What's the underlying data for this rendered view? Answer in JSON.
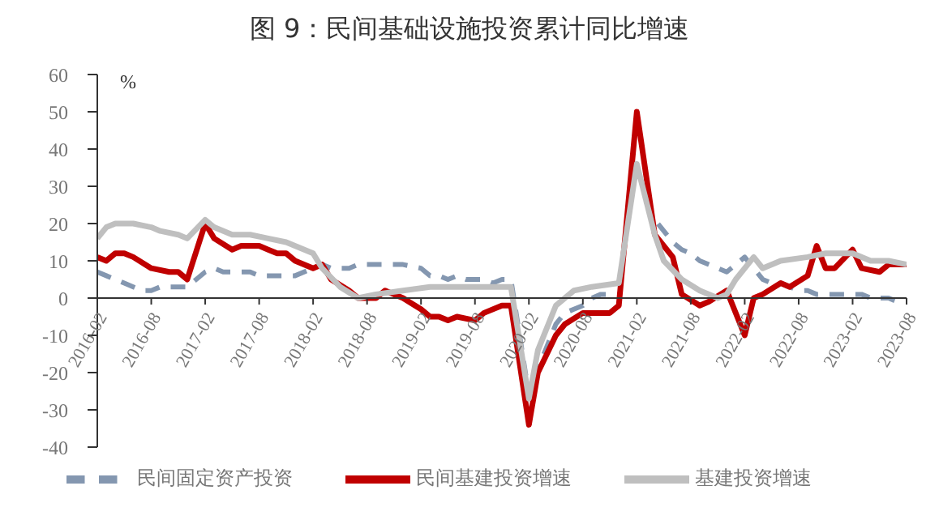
{
  "chart_data": {
    "type": "line",
    "title": "图 9：民间基础设施投资累计同比增速",
    "ylabel": "%",
    "xlim": [
      "2016-02",
      "2023-08"
    ],
    "xticks": [
      "2016-02",
      "2016-08",
      "2017-02",
      "2017-08",
      "2018-02",
      "2018-08",
      "2019-02",
      "2019-08",
      "2020-02",
      "2020-08",
      "2021-02",
      "2021-08",
      "2022-02",
      "2022-08",
      "2023-02",
      "2023-08"
    ],
    "ylim": [
      -40,
      60
    ],
    "yticks": [
      -40,
      -30,
      -20,
      -10,
      0,
      10,
      20,
      30,
      40,
      50,
      60
    ],
    "grid": false,
    "legend": "bottom",
    "series": [
      {
        "name": "民间固定资产投资",
        "color": "#8497b0",
        "line_style": "dashed",
        "x": [
          "2016-02",
          "2016-03",
          "2016-04",
          "2016-05",
          "2016-06",
          "2016-07",
          "2016-08",
          "2016-09",
          "2016-10",
          "2016-11",
          "2016-12",
          "2017-02",
          "2017-03",
          "2017-04",
          "2017-05",
          "2017-06",
          "2017-07",
          "2017-08",
          "2017-09",
          "2017-10",
          "2017-11",
          "2017-12",
          "2018-02",
          "2018-03",
          "2018-04",
          "2018-05",
          "2018-06",
          "2018-07",
          "2018-08",
          "2018-09",
          "2018-10",
          "2018-11",
          "2018-12",
          "2019-02",
          "2019-03",
          "2019-04",
          "2019-05",
          "2019-06",
          "2019-07",
          "2019-08",
          "2019-09",
          "2019-10",
          "2019-11",
          "2019-12",
          "2020-02",
          "2020-03",
          "2020-04",
          "2020-05",
          "2020-06",
          "2020-07",
          "2020-08",
          "2020-09",
          "2020-10",
          "2020-11",
          "2020-12",
          "2021-02",
          "2021-03",
          "2021-04",
          "2021-05",
          "2021-06",
          "2021-07",
          "2021-08",
          "2021-09",
          "2021-10",
          "2021-11",
          "2021-12",
          "2022-02",
          "2022-03",
          "2022-04",
          "2022-05",
          "2022-06",
          "2022-07",
          "2022-08",
          "2022-09",
          "2022-10",
          "2022-11",
          "2022-12",
          "2023-02",
          "2023-03",
          "2023-04",
          "2023-05",
          "2023-06",
          "2023-07",
          "2023-08"
        ],
        "values": [
          7,
          6,
          5,
          4,
          3,
          2,
          2,
          3,
          3,
          3,
          3,
          7,
          8,
          7,
          7,
          7,
          7,
          6,
          6,
          6,
          6,
          6,
          8,
          9,
          8,
          8,
          8,
          9,
          9,
          9,
          9,
          9,
          9,
          8,
          6,
          6,
          5,
          6,
          5,
          5,
          5,
          4,
          5,
          5,
          -26,
          -19,
          -13,
          -7,
          -4,
          -3,
          -2,
          0,
          1,
          1,
          1,
          null,
          26,
          21,
          18,
          15,
          13,
          12,
          10,
          9,
          8,
          7,
          11,
          8,
          5,
          4,
          4,
          3,
          2,
          2,
          1,
          1,
          1,
          1,
          1,
          0,
          0,
          0,
          -1,
          -1
        ]
      },
      {
        "name": "民间基建投资增速",
        "color": "#c00000",
        "line_style": "solid",
        "x": [
          "2016-02",
          "2016-03",
          "2016-04",
          "2016-05",
          "2016-06",
          "2016-08",
          "2016-10",
          "2016-11",
          "2016-12",
          "2017-02",
          "2017-03",
          "2017-05",
          "2017-06",
          "2017-08",
          "2017-09",
          "2017-10",
          "2017-11",
          "2017-12",
          "2018-02",
          "2018-03",
          "2018-04",
          "2018-06",
          "2018-07",
          "2018-09",
          "2018-10",
          "2018-12",
          "2019-02",
          "2019-03",
          "2019-04",
          "2019-05",
          "2019-06",
          "2019-08",
          "2019-09",
          "2019-11",
          "2019-12",
          "2020-02",
          "2020-03",
          "2020-05",
          "2020-06",
          "2020-08",
          "2020-09",
          "2020-11",
          "2020-12",
          "2021-02",
          "2021-04",
          "2021-06",
          "2021-07",
          "2021-09",
          "2021-10",
          "2021-12",
          "2022-02",
          "2022-03",
          "2022-04",
          "2022-06",
          "2022-07",
          "2022-09",
          "2022-10",
          "2022-11",
          "2022-12",
          "2023-02",
          "2023-03",
          "2023-05",
          "2023-06",
          "2023-08"
        ],
        "values": [
          11,
          10,
          12,
          12,
          11,
          8,
          7,
          7,
          5,
          20,
          16,
          13,
          14,
          14,
          13,
          12,
          12,
          10,
          8,
          9,
          5,
          2,
          0,
          0,
          2,
          0,
          -3,
          -5,
          -5,
          -6,
          -5,
          -6,
          -4,
          -2,
          -2,
          -34,
          -20,
          -10,
          -7,
          -4,
          -4,
          -4,
          -2,
          50,
          17,
          11,
          1,
          -2,
          -1,
          2,
          -10,
          0,
          1,
          4,
          3,
          6,
          14,
          8,
          8,
          13,
          8,
          7,
          9,
          9
        ]
      },
      {
        "name": "基建投资增速",
        "color": "#bfbfbf",
        "line_style": "solid",
        "x": [
          "2016-02",
          "2016-03",
          "2016-04",
          "2016-06",
          "2016-08",
          "2016-09",
          "2016-11",
          "2016-12",
          "2017-02",
          "2017-03",
          "2017-05",
          "2017-07",
          "2017-09",
          "2017-11",
          "2018-02",
          "2018-03",
          "2018-05",
          "2018-07",
          "2018-09",
          "2018-12",
          "2019-03",
          "2019-05",
          "2019-07",
          "2019-09",
          "2019-12",
          "2020-02",
          "2020-03",
          "2020-05",
          "2020-07",
          "2020-09",
          "2020-12",
          "2021-02",
          "2021-04",
          "2021-05",
          "2021-07",
          "2021-09",
          "2021-11",
          "2021-12",
          "2022-01",
          "2022-03",
          "2022-04",
          "2022-06",
          "2022-09",
          "2022-11",
          "2023-02",
          "2023-04",
          "2023-06",
          "2023-08"
        ],
        "values": [
          16,
          19,
          20,
          20,
          19,
          18,
          17,
          16,
          21,
          19,
          17,
          17,
          16,
          15,
          12,
          8,
          3,
          0,
          1,
          2,
          3,
          3,
          3,
          3,
          3,
          -27,
          -14,
          -2,
          2,
          3,
          4,
          36,
          17,
          10,
          5,
          2,
          0,
          1,
          5,
          11,
          8,
          10,
          11,
          12,
          12,
          10,
          10,
          9
        ]
      }
    ]
  }
}
